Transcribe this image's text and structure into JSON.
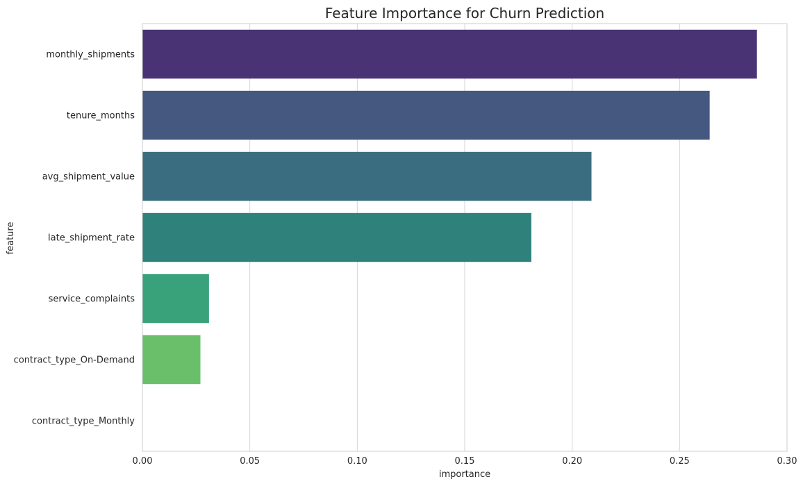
{
  "chart_data": {
    "type": "bar",
    "orientation": "horizontal",
    "title": "Feature Importance for Churn Prediction",
    "xlabel": "importance",
    "ylabel": "feature",
    "xlim": [
      0.0,
      0.3
    ],
    "xticks": [
      "0.00",
      "0.05",
      "0.10",
      "0.15",
      "0.20",
      "0.25",
      "0.30"
    ],
    "grid": "vertical",
    "categories": [
      "monthly_shipments",
      "tenure_months",
      "avg_shipment_value",
      "late_shipment_rate",
      "service_complaints",
      "contract_type_On-Demand",
      "contract_type_Monthly"
    ],
    "values": [
      0.286,
      0.264,
      0.209,
      0.181,
      0.031,
      0.027,
      0.0
    ],
    "colors": [
      "#4a3374",
      "#45587f",
      "#3b6d81",
      "#2e827b",
      "#3aa27b",
      "#6abf6b",
      "#a8d85a"
    ]
  }
}
